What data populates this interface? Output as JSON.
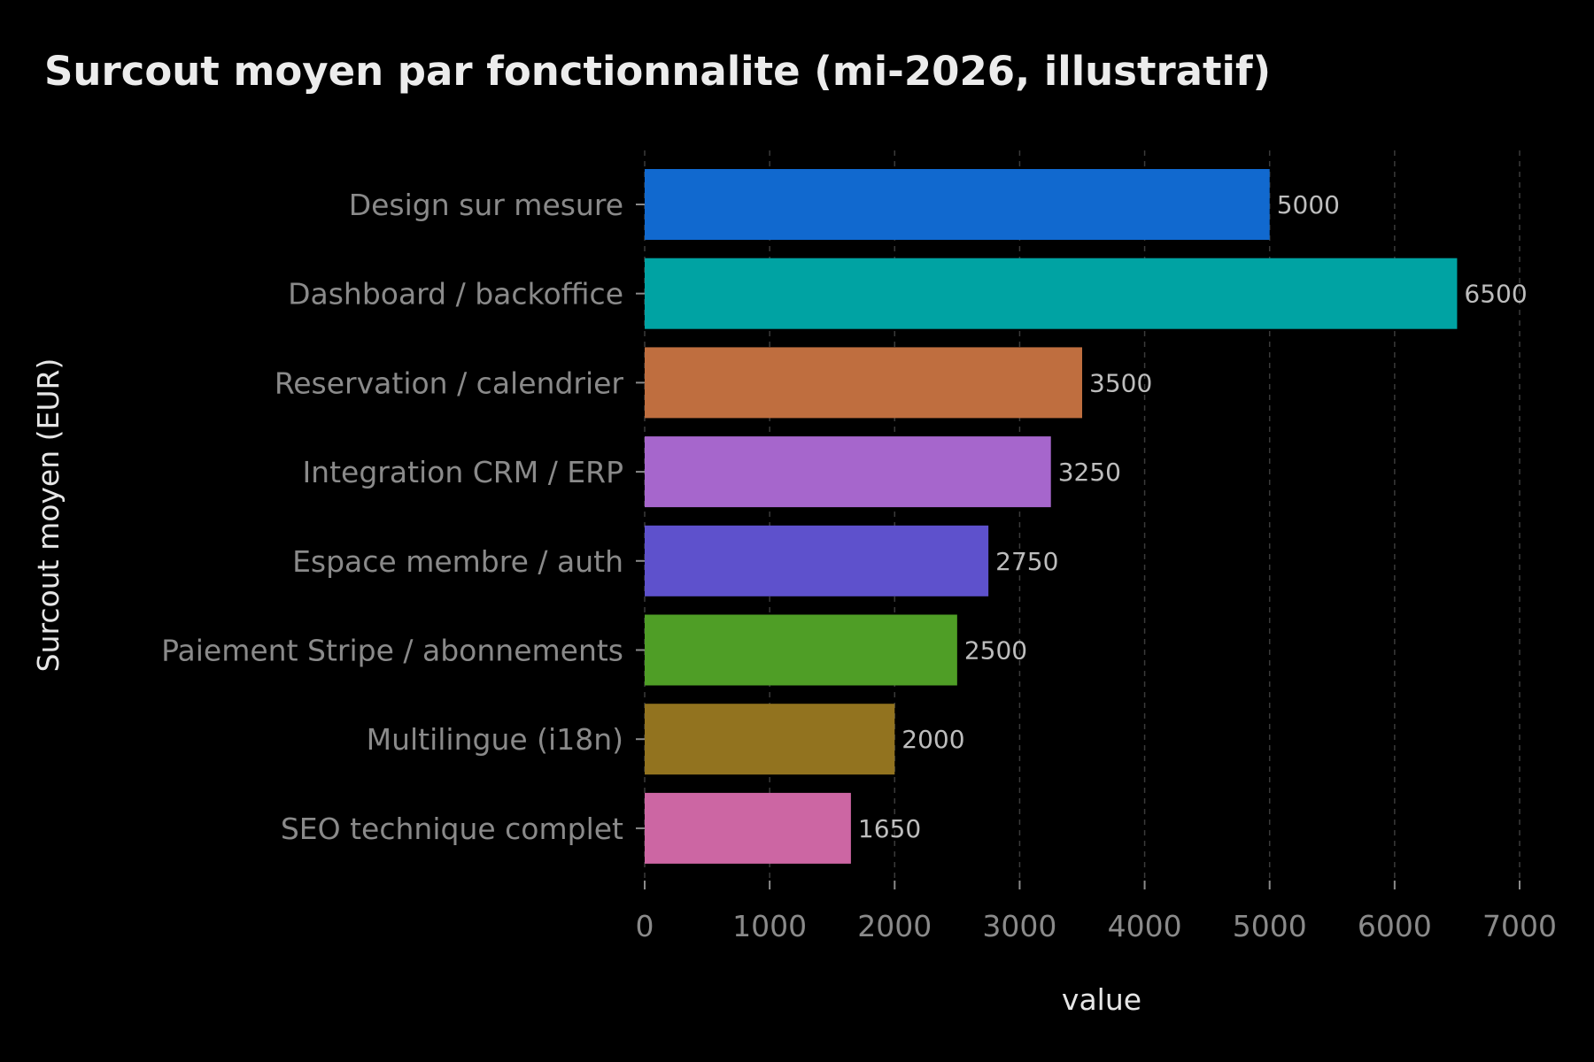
{
  "chart_data": {
    "type": "bar",
    "orientation": "horizontal",
    "title": "Surcout moyen par fonctionnalite (mi-2026, illustratif)",
    "xlabel": "value",
    "ylabel": "Surcout moyen (EUR)",
    "xlim": [
      0,
      7000
    ],
    "xticks": [
      0,
      1000,
      2000,
      3000,
      4000,
      5000,
      6000,
      7000
    ],
    "grid": "vertical-dashed",
    "categories": [
      "Design sur mesure",
      "Dashboard / backoffice",
      "Reservation / calendrier",
      "Integration CRM / ERP",
      "Espace membre / auth",
      "Paiement Stripe / abonnements",
      "Multilingue (i18n)",
      "SEO technique complet"
    ],
    "values": [
      5000,
      6500,
      3500,
      3250,
      2750,
      2500,
      2000,
      1650
    ],
    "colors": [
      "#1169cf",
      "#00a3a3",
      "#bf6e3f",
      "#a666cc",
      "#5e51cc",
      "#4f9e26",
      "#92731f",
      "#cc66a3"
    ],
    "background": "#000000"
  }
}
